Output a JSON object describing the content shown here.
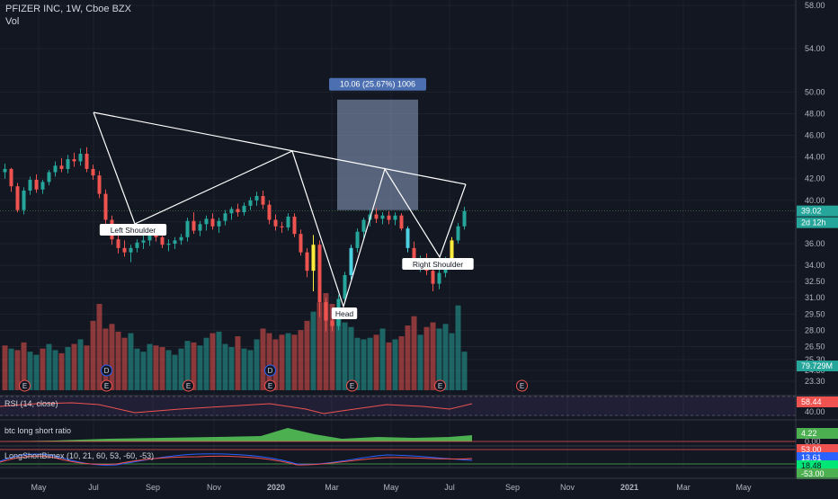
{
  "header": {
    "symbol": "PFIZER INC, 1W, Cboe BZX",
    "volume_label": "Vol"
  },
  "chart_data": {
    "type": "candlestick",
    "price_axis_ticks": [
      "58.00",
      "54.00",
      "50.00",
      "48.00",
      "46.00",
      "44.00",
      "42.00",
      "40.00",
      "38.00",
      "36.00",
      "34.00",
      "32.50",
      "31.00",
      "29.50",
      "28.00",
      "26.50",
      "25.30",
      "24.30",
      "23.30"
    ],
    "x_axis_labels": [
      "May",
      "Jul",
      "Sep",
      "Nov",
      "2020",
      "Mar",
      "May",
      "Jul",
      "Sep",
      "Nov",
      "2021",
      "Mar",
      "May"
    ],
    "last_price": "39.02",
    "countdown": "2d 12h",
    "volume_value": "79.729M",
    "candles": [
      [
        42.6,
        43.4,
        42.0,
        42.9
      ],
      [
        42.9,
        43.0,
        40.8,
        41.3
      ],
      [
        41.3,
        41.6,
        38.9,
        39.1
      ],
      [
        39.1,
        41.2,
        38.7,
        40.9
      ],
      [
        40.9,
        42.2,
        40.5,
        41.9
      ],
      [
        41.9,
        42.4,
        40.7,
        41.0
      ],
      [
        41.0,
        41.9,
        40.6,
        41.7
      ],
      [
        41.7,
        42.8,
        41.4,
        42.6
      ],
      [
        42.6,
        43.6,
        42.2,
        43.2
      ],
      [
        43.2,
        43.9,
        42.6,
        42.9
      ],
      [
        42.9,
        44.2,
        42.5,
        43.8
      ],
      [
        43.8,
        44.4,
        43.1,
        43.6
      ],
      [
        43.6,
        44.8,
        43.2,
        44.3
      ],
      [
        44.3,
        44.9,
        42.6,
        42.9
      ],
      [
        42.9,
        43.3,
        41.9,
        42.3
      ],
      [
        42.3,
        42.7,
        40.2,
        40.6
      ],
      [
        40.6,
        41.0,
        37.8,
        38.2
      ],
      [
        38.2,
        38.6,
        35.9,
        36.4
      ],
      [
        36.4,
        36.9,
        35.1,
        35.6
      ],
      [
        35.6,
        36.3,
        34.8,
        35.2
      ],
      [
        35.2,
        35.9,
        34.3,
        35.6
      ],
      [
        35.6,
        36.4,
        35.2,
        36.1
      ],
      [
        36.1,
        36.8,
        35.5,
        36.3
      ],
      [
        36.3,
        37.1,
        35.8,
        36.9
      ],
      [
        36.9,
        37.3,
        36.2,
        36.6
      ],
      [
        36.6,
        37.0,
        35.6,
        35.9
      ],
      [
        35.9,
        36.4,
        35.3,
        36.0
      ],
      [
        36.0,
        36.6,
        35.5,
        36.3
      ],
      [
        36.3,
        36.9,
        35.9,
        36.6
      ],
      [
        36.6,
        38.4,
        36.2,
        38.1
      ],
      [
        38.1,
        38.9,
        36.9,
        37.2
      ],
      [
        37.2,
        38.1,
        36.7,
        37.8
      ],
      [
        37.8,
        38.6,
        37.2,
        38.3
      ],
      [
        38.3,
        38.8,
        37.3,
        37.6
      ],
      [
        37.6,
        38.4,
        37.0,
        38.1
      ],
      [
        38.1,
        39.1,
        37.7,
        38.8
      ],
      [
        38.8,
        39.4,
        38.2,
        39.2
      ],
      [
        39.2,
        39.7,
        38.5,
        38.9
      ],
      [
        38.9,
        39.8,
        38.6,
        39.5
      ],
      [
        39.5,
        40.3,
        39.1,
        40.0
      ],
      [
        40.0,
        40.8,
        39.5,
        40.4
      ],
      [
        40.4,
        40.9,
        39.2,
        39.6
      ],
      [
        39.6,
        40.0,
        37.8,
        38.2
      ],
      [
        38.2,
        38.7,
        37.2,
        37.6
      ],
      [
        37.6,
        38.0,
        37.0,
        37.5
      ],
      [
        37.5,
        38.8,
        37.2,
        38.5
      ],
      [
        38.5,
        38.8,
        36.6,
        36.9
      ],
      [
        36.9,
        37.3,
        34.9,
        35.2
      ],
      [
        35.2,
        35.6,
        32.9,
        33.5
      ],
      [
        33.5,
        36.8,
        31.6,
        35.9
      ],
      [
        35.9,
        36.3,
        29.2,
        30.6
      ],
      [
        30.6,
        31.0,
        27.9,
        28.9
      ],
      [
        28.9,
        29.6,
        27.9,
        28.4
      ],
      [
        28.4,
        31.3,
        28.0,
        30.9
      ],
      [
        30.9,
        33.4,
        30.5,
        33.1
      ],
      [
        33.1,
        35.9,
        32.7,
        35.6
      ],
      [
        35.6,
        37.4,
        35.2,
        37.1
      ],
      [
        37.1,
        38.4,
        36.5,
        38.2
      ],
      [
        38.2,
        39.2,
        37.6,
        38.7
      ],
      [
        38.7,
        39.3,
        37.9,
        38.3
      ],
      [
        38.3,
        38.9,
        37.8,
        38.6
      ],
      [
        38.6,
        39.0,
        37.8,
        38.2
      ],
      [
        38.2,
        38.9,
        37.7,
        38.6
      ],
      [
        38.6,
        38.8,
        37.2,
        37.4
      ],
      [
        37.4,
        37.6,
        35.2,
        35.6
      ],
      [
        35.6,
        36.2,
        33.6,
        34.1
      ],
      [
        34.1,
        34.9,
        33.4,
        34.6
      ],
      [
        34.6,
        35.1,
        33.1,
        33.5
      ],
      [
        33.5,
        33.9,
        31.6,
        32.3
      ],
      [
        32.3,
        33.6,
        31.8,
        33.3
      ],
      [
        33.3,
        34.8,
        32.9,
        34.6
      ],
      [
        34.6,
        36.6,
        34.2,
        36.3
      ],
      [
        36.3,
        37.9,
        36.0,
        37.6
      ],
      [
        37.6,
        39.4,
        37.3,
        39.02
      ]
    ],
    "volume": [
      29,
      27,
      26,
      31,
      25,
      23,
      27,
      30,
      26,
      24,
      28,
      30,
      33,
      29,
      45,
      56,
      40,
      43,
      38,
      34,
      37,
      27,
      25,
      30,
      29,
      28,
      26,
      23,
      27,
      32,
      31,
      29,
      34,
      37,
      38,
      30,
      28,
      35,
      27,
      26,
      33,
      40,
      37,
      33,
      36,
      37,
      36,
      39,
      45,
      51,
      57,
      63,
      56,
      48,
      44,
      41,
      34,
      33,
      34,
      36,
      40,
      31,
      33,
      35,
      42,
      48,
      36,
      41,
      44,
      40,
      43,
      37,
      55,
      25
    ],
    "volume_colors": [
      "#ef5350",
      "#26a69a",
      "#ef5350",
      "#ef5350",
      "#26a69a",
      "#26a69a",
      "#ef5350",
      "#26a69a",
      "#26a69a",
      "#ef5350",
      "#26a69a",
      "#ef5350",
      "#26a69a",
      "#ef5350",
      "#ef5350",
      "#ef5350",
      "#ef5350",
      "#ef5350",
      "#ef5350",
      "#ef5350",
      "#26a69a",
      "#26a69a",
      "#26a69a",
      "#26a69a",
      "#ef5350",
      "#ef5350",
      "#26a69a",
      "#26a69a",
      "#26a69a",
      "#26a69a",
      "#ef5350",
      "#26a69a",
      "#26a69a",
      "#ef5350",
      "#26a69a",
      "#26a69a",
      "#26a69a",
      "#ef5350",
      "#26a69a",
      "#26a69a",
      "#26a69a",
      "#ef5350",
      "#ef5350",
      "#ef5350",
      "#ef5350",
      "#26a69a",
      "#ef5350",
      "#ef5350",
      "#ef5350",
      "#26a69a",
      "#ef5350",
      "#ef5350",
      "#ef5350",
      "#26a69a",
      "#26a69a",
      "#26a69a",
      "#26a69a",
      "#26a69a",
      "#26a69a",
      "#ef5350",
      "#26a69a",
      "#ef5350",
      "#26a69a",
      "#ef5350",
      "#ef5350",
      "#ef5350",
      "#26a69a",
      "#ef5350",
      "#ef5350",
      "#26a69a",
      "#26a69a",
      "#26a69a",
      "#26a69a",
      "#26a69a"
    ],
    "events": [
      {
        "label": "E",
        "i": 3
      },
      {
        "label": "E",
        "i": 16
      },
      {
        "label": "D",
        "i": 16
      },
      {
        "label": "E",
        "i": 29
      },
      {
        "label": "E",
        "i": 42
      },
      {
        "label": "D",
        "i": 42
      },
      {
        "label": "E",
        "i": 55
      },
      {
        "label": "E",
        "i": 69
      },
      {
        "label": "E",
        "i": 82
      }
    ],
    "pattern_labels": [
      "Left Shoulder",
      "Head",
      "Right Shoulder"
    ],
    "measure_label": "10.06 (25.67%) 1006",
    "colors": {
      "up": "#26a69a",
      "down": "#ef5350",
      "highlight": "#ffeb3b",
      "highlight_bull": "#4dd0e1",
      "bg": "#131722"
    },
    "indicators": [
      {
        "name": "RSI (14, close)",
        "values": [
          "58.44",
          "40.00"
        ]
      },
      {
        "name": "btc long short ratio",
        "values": [
          "4.22",
          "0.00"
        ]
      },
      {
        "name": "LongShortBimex (10, 21, 60, 53, -60, -53)",
        "values": [
          "53.00",
          "13.61",
          "18.48",
          "-53.00"
        ]
      }
    ]
  }
}
